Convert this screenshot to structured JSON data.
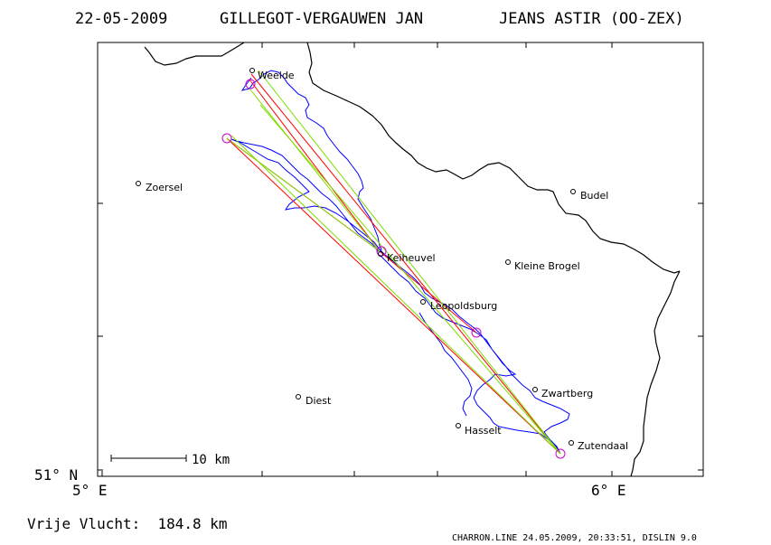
{
  "header": {
    "date": "22-05-2009",
    "pilot": "GILLEGOT-VERGAUWEN JAN",
    "glider": "JEANS ASTIR (OO-ZEX)"
  },
  "map": {
    "lat_label": "51° N",
    "lon_labels": [
      "5° E",
      "6° E"
    ],
    "scale_label": "10 km",
    "colors": {
      "border": "#000000",
      "track": "#0000ff",
      "task_primary": "#ff0000",
      "task_secondary": "#7fdd00",
      "turnpoint": "#cc00cc"
    },
    "places": [
      {
        "name": "Weelde"
      },
      {
        "name": "Zoersel"
      },
      {
        "name": "Budel"
      },
      {
        "name": "Keiheuvel"
      },
      {
        "name": "Kleine Brogel"
      },
      {
        "name": "Leopoldsburg"
      },
      {
        "name": "Zwartberg"
      },
      {
        "name": "Diest"
      },
      {
        "name": "Hasselt"
      },
      {
        "name": "Zutendaal"
      }
    ]
  },
  "footer": {
    "distance": "Vrije Vlucht:  184.8 km",
    "credit": "CHARRON.LINE 24.05.2009, 20:33:51, DISLIN 9.0"
  }
}
